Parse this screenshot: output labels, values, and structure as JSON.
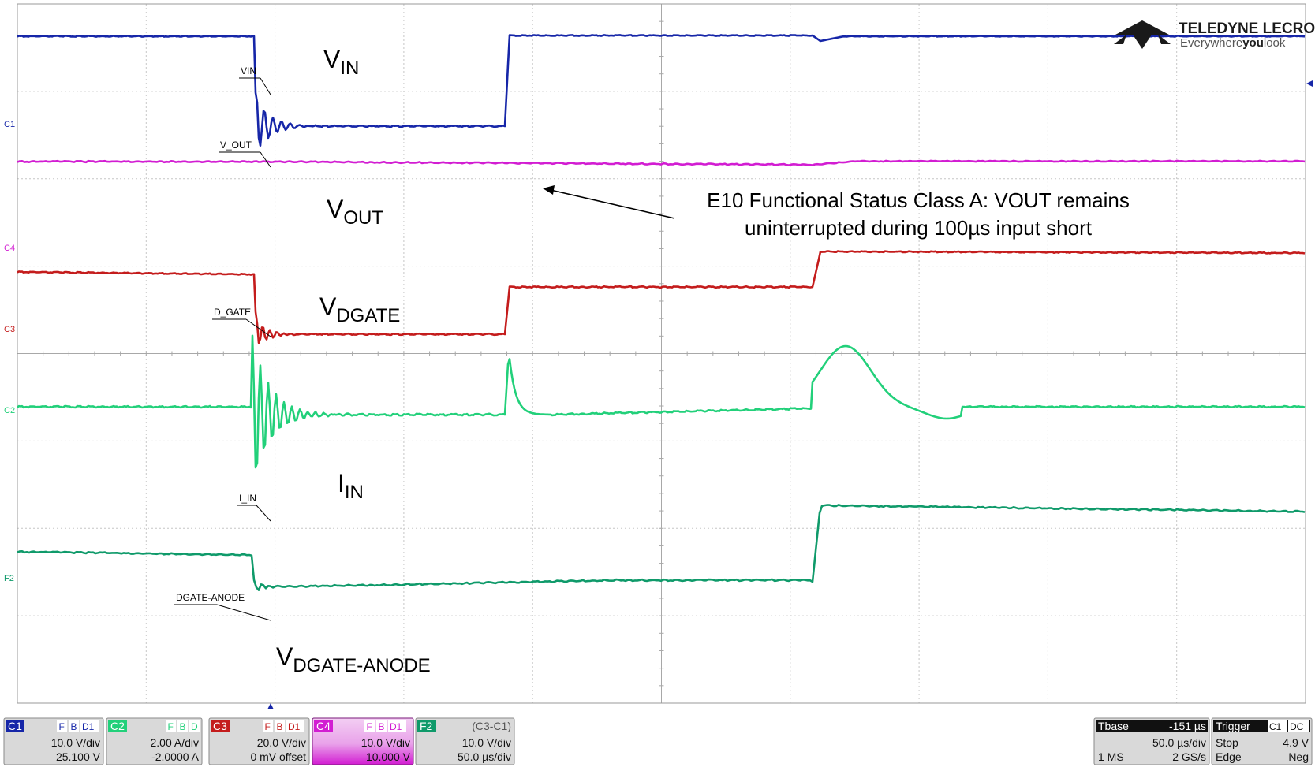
{
  "brand": {
    "name": "TELEDYNE LECROY",
    "tagline_part1": "Everywhere",
    "tagline_part2": "you",
    "tagline_part3": "look"
  },
  "colors": {
    "c1": "#1626a8",
    "c2": "#22d07a",
    "c3": "#c41c1c",
    "c4": "#d21dd2",
    "f2": "#0f9a6a",
    "grid": "#b8b8b8"
  },
  "labels": {
    "vin_main": "V",
    "vin_sub": "IN",
    "vout_main": "V",
    "vout_sub": "OUT",
    "vdgate_main": "V",
    "vdgate_sub": "DGATE",
    "iin_main": "I",
    "iin_sub": "IN",
    "anode_main": "V",
    "anode_sub": "DGATE-ANODE"
  },
  "trace_tags": {
    "vin": "VIN",
    "vout": "V_OUT",
    "dgate": "D_GATE",
    "iin": "I_IN",
    "anode": "DGATE-ANODE"
  },
  "channel_markers": {
    "c1": "C1",
    "c4": "C4",
    "c3": "C3",
    "c2": "C2",
    "f2": "F2"
  },
  "annotation": {
    "line1": "E10 Functional Status Class A: VOUT remains",
    "line2": "uninterrupted during 100µs input short"
  },
  "channels": [
    {
      "id": "C1",
      "flags": [
        "F",
        "B",
        "D1"
      ],
      "scale": "10.0 V/div",
      "offset": "25.100 V"
    },
    {
      "id": "C2",
      "flags": [
        "F",
        "B",
        "D"
      ],
      "scale": "2.00 A/div",
      "offset": "-2.0000 A"
    },
    {
      "id": "C3",
      "flags": [
        "F",
        "B",
        "D1"
      ],
      "scale": "20.0 V/div",
      "offset": "0 mV offset"
    },
    {
      "id": "C4",
      "flags": [
        "F",
        "B",
        "D1"
      ],
      "scale": "10.0 V/div",
      "offset": "10.000 V"
    },
    {
      "id": "F2",
      "func": "(C3-C1)",
      "scale": "10.0 V/div",
      "offset": "50.0 µs/div"
    }
  ],
  "timebase": {
    "label": "Tbase",
    "delay": "-151 µs",
    "scale": "50.0 µs/div",
    "mem": "1 MS",
    "rate": "2 GS/s"
  },
  "trigger": {
    "label": "Trigger",
    "source": "C1",
    "coupling": "DC",
    "mode": "Stop",
    "level": "4.9 V",
    "type": "Edge",
    "slope": "Neg"
  }
}
